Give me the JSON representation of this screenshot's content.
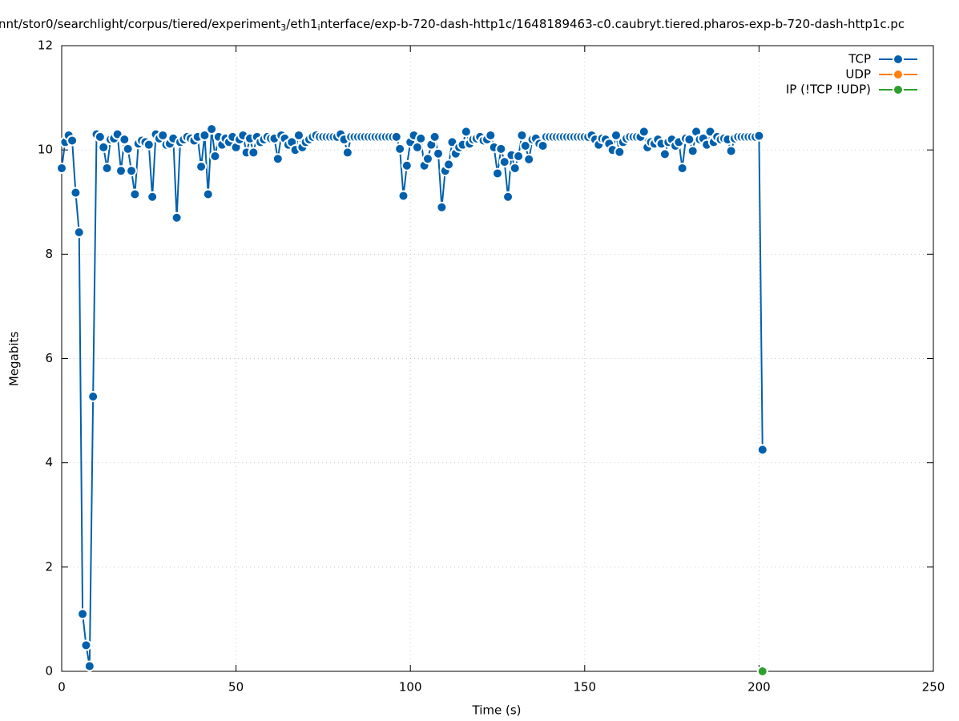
{
  "chart_data": {
    "type": "line",
    "title": "nnt/stor0/searchlight/corpus/tiered/experiment_3/eth1_interface/exp-b-720-dash-http1c/1648189463-c0.caubryt.tiered.pharos-exp-b-720-dash-http1c.pc",
    "xlabel": "Time (s)",
    "ylabel": "Megabits",
    "xlim": [
      0,
      250
    ],
    "xticks": [
      0,
      50,
      100,
      150,
      200,
      250
    ],
    "ylim": [
      0,
      12
    ],
    "yticks": [
      0,
      2,
      4,
      6,
      8,
      10,
      12
    ],
    "grid": true,
    "legend": "top-right",
    "series": [
      {
        "name": "TCP",
        "color": "#0060ad",
        "x": [
          0,
          1,
          2,
          3,
          4,
          5,
          6,
          7,
          8,
          9,
          10,
          11,
          12,
          13,
          14,
          15,
          16,
          17,
          18,
          19,
          20,
          21,
          22,
          23,
          24,
          25,
          26,
          27,
          28,
          29,
          30,
          31,
          32,
          33,
          34,
          35,
          36,
          37,
          38,
          39,
          40,
          41,
          42,
          43,
          44,
          45,
          46,
          47,
          48,
          49,
          50,
          51,
          52,
          53,
          54,
          55,
          56,
          57,
          58,
          59,
          60,
          61,
          62,
          63,
          64,
          65,
          66,
          67,
          68,
          69,
          70,
          71,
          72,
          73,
          74,
          75,
          76,
          77,
          78,
          79,
          80,
          81,
          82,
          83,
          84,
          85,
          86,
          87,
          88,
          89,
          90,
          91,
          92,
          93,
          94,
          95,
          96,
          97,
          98,
          99,
          100,
          101,
          102,
          103,
          104,
          105,
          106,
          107,
          108,
          109,
          110,
          111,
          112,
          113,
          114,
          115,
          116,
          117,
          118,
          119,
          120,
          121,
          122,
          123,
          124,
          125,
          126,
          127,
          128,
          129,
          130,
          131,
          132,
          133,
          134,
          135,
          136,
          137,
          138,
          139,
          140,
          141,
          142,
          143,
          144,
          145,
          146,
          147,
          148,
          149,
          150,
          151,
          152,
          153,
          154,
          155,
          156,
          157,
          158,
          159,
          160,
          161,
          162,
          163,
          164,
          165,
          166,
          167,
          168,
          169,
          170,
          171,
          172,
          173,
          174,
          175,
          176,
          177,
          178,
          179,
          180,
          181,
          182,
          183,
          184,
          185,
          186,
          187,
          188,
          189,
          190,
          191,
          192,
          193,
          194,
          195,
          196,
          197,
          198,
          199,
          200,
          201
        ],
        "values": [
          9.65,
          10.15,
          10.28,
          10.18,
          9.18,
          8.42,
          1.1,
          0.5,
          0.1,
          5.27,
          10.3,
          10.25,
          10.05,
          9.65,
          10.2,
          10.22,
          10.3,
          9.6,
          10.2,
          10.02,
          9.6,
          9.15,
          10.12,
          10.18,
          10.15,
          10.1,
          9.1,
          10.3,
          10.22,
          10.28,
          10.1,
          10.12,
          10.22,
          8.7,
          10.15,
          10.2,
          10.25,
          10.22,
          10.18,
          10.25,
          9.68,
          10.28,
          9.15,
          10.4,
          9.88,
          10.25,
          10.1,
          10.22,
          10.15,
          10.25,
          10.05,
          10.2,
          10.28,
          9.95,
          10.22,
          9.95,
          10.25,
          10.15,
          10.2,
          10.25,
          10.22,
          10.22,
          9.83,
          10.28,
          10.22,
          10.1,
          10.15,
          10.0,
          10.28,
          10.05,
          10.15,
          10.2,
          10.25,
          10.28,
          10.25,
          10.25,
          10.25,
          10.25,
          10.25,
          10.25,
          10.3,
          10.2,
          9.95,
          10.25,
          10.25,
          10.25,
          10.25,
          10.25,
          10.25,
          10.25,
          10.25,
          10.25,
          10.25,
          10.25,
          10.25,
          10.25,
          10.25,
          10.02,
          9.12,
          9.7,
          10.15,
          10.28,
          10.05,
          10.22,
          9.7,
          9.83,
          10.1,
          10.25,
          9.93,
          8.9,
          9.6,
          9.72,
          10.15,
          9.93,
          10.05,
          10.1,
          10.35,
          10.12,
          10.2,
          10.22,
          10.25,
          10.18,
          10.2,
          10.28,
          10.05,
          9.55,
          10.02,
          9.77,
          9.1,
          9.9,
          9.65,
          9.88,
          10.28,
          10.08,
          9.82,
          10.2,
          10.22,
          10.12,
          10.08,
          10.25,
          10.25,
          10.25,
          10.25,
          10.25,
          10.25,
          10.25,
          10.25,
          10.25,
          10.25,
          10.25,
          10.25,
          10.25,
          10.28,
          10.2,
          10.1,
          10.22,
          10.2,
          10.12,
          10.0,
          10.28,
          9.96,
          10.15,
          10.22,
          10.25,
          10.25,
          10.25,
          10.25,
          10.35,
          10.05,
          10.15,
          10.12,
          10.2,
          10.12,
          9.92,
          10.15,
          10.2,
          10.08,
          10.15,
          9.65,
          10.22,
          10.2,
          9.98,
          10.35,
          10.2,
          10.22,
          10.1,
          10.35,
          10.15,
          10.25,
          10.2,
          10.22,
          10.2,
          9.98,
          10.22,
          10.25,
          10.25,
          10.25,
          10.25,
          10.25,
          10.25,
          10.27,
          4.25
        ]
      },
      {
        "name": "UDP",
        "color": "#ff7f0e",
        "x": [],
        "values": []
      },
      {
        "name": "IP (!TCP  !UDP)",
        "color": "#2ca02c",
        "x": [
          201
        ],
        "values": [
          0
        ]
      }
    ]
  }
}
